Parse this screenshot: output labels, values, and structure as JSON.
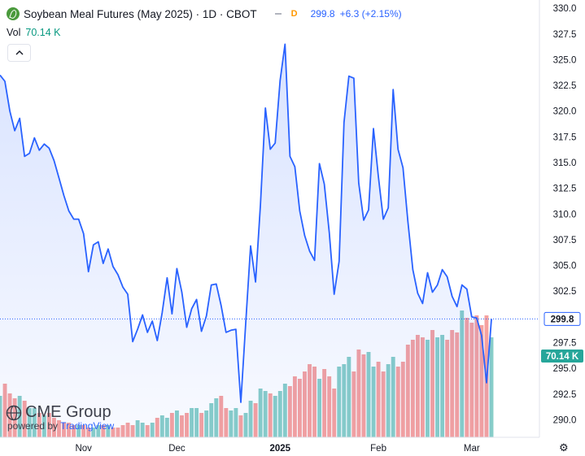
{
  "header": {
    "title": "Soybean Meal Futures (May 2025) · 1D · CBOT",
    "flag": "D",
    "last": "299.8",
    "change": "+6.3 (+2.15%)"
  },
  "volume": {
    "label": "Vol",
    "value": "70.14 K"
  },
  "logo": {
    "brand": "CME Group",
    "powered_by": "powered by",
    "provider": "TradingView"
  },
  "colors": {
    "line": "#2962ff",
    "vol_up": "#26a69a",
    "vol_down": "#ef5350",
    "axis_text": "#131722"
  },
  "chart_data": {
    "type": "line",
    "x_labels": [
      "Nov",
      "Dec",
      "2025",
      "Feb",
      "Mar"
    ],
    "ylim": [
      288.3,
      330.8
    ],
    "y_ticks": [
      330.0,
      327.5,
      325.0,
      322.5,
      320.0,
      317.5,
      315.0,
      312.5,
      310.0,
      307.5,
      305.0,
      302.5,
      297.5,
      295.0,
      292.5,
      290.0
    ],
    "y_tick_labels": [
      "330.0",
      "327.5",
      "325.0",
      "322.5",
      "320.0",
      "317.5",
      "315.0",
      "312.5",
      "310.0",
      "307.5",
      "305.0",
      "302.5",
      "297.5",
      "295.0",
      "292.5",
      "290.0"
    ],
    "last_price_label": "299.8",
    "last_price": 299.8,
    "volume_label": "70.14 K",
    "series": [
      {
        "values": [
          323.5,
          322.9,
          320.0,
          318.1,
          319.3,
          315.6,
          315.9,
          317.4,
          316.2,
          316.8,
          316.4,
          315.2,
          313.5,
          311.8,
          310.3,
          309.5,
          309.5,
          308.1,
          304.4,
          307.0,
          307.3,
          305.2,
          306.6,
          304.9,
          304.1,
          302.9,
          302.2,
          297.6,
          298.8,
          300.2,
          298.5,
          299.6,
          297.7,
          300.4,
          303.8,
          300.3,
          304.7,
          302.4,
          299.0,
          300.8,
          301.7,
          298.6,
          300.1,
          303.1,
          303.2,
          301.1,
          298.5,
          298.7,
          298.8,
          291.7,
          299.4,
          306.9,
          303.4,
          310.9,
          320.3,
          316.3,
          316.9,
          323.0,
          326.5,
          315.6,
          314.6,
          310.3,
          307.9,
          306.4,
          305.5,
          314.9,
          312.9,
          308.2,
          302.2,
          305.4,
          318.9,
          323.4,
          323.2,
          313.0,
          309.4,
          310.4,
          318.3,
          313.6,
          309.5,
          310.6,
          322.1,
          316.3,
          314.5,
          309.3,
          304.6,
          302.3,
          301.3,
          304.3,
          302.4,
          303.1,
          304.6,
          303.9,
          302.0,
          301.0,
          303.1,
          302.7,
          300.0,
          299.9,
          298.2,
          293.6,
          299.8
        ]
      }
    ],
    "volume": {
      "values": [
        17,
        22,
        18,
        16,
        17,
        15,
        12,
        12,
        10,
        9,
        10,
        8,
        7,
        6,
        6,
        5,
        5,
        5,
        4,
        4,
        5,
        5,
        5,
        4,
        4,
        5,
        6,
        5,
        7,
        6,
        5,
        6,
        8,
        9,
        8,
        10,
        11,
        9,
        10,
        12,
        12,
        10,
        11,
        14,
        16,
        17,
        12,
        11,
        12,
        9,
        10,
        15,
        14,
        20,
        19,
        18,
        17,
        19,
        22,
        21,
        25,
        24,
        27,
        30,
        29,
        24,
        28,
        25,
        20,
        29,
        30,
        33,
        27,
        36,
        34,
        35,
        29,
        31,
        27,
        30,
        33,
        29,
        31,
        38,
        40,
        42,
        41,
        40,
        44,
        41,
        42,
        40,
        44,
        43,
        52,
        49,
        47,
        50,
        46,
        50,
        41
      ]
    }
  }
}
